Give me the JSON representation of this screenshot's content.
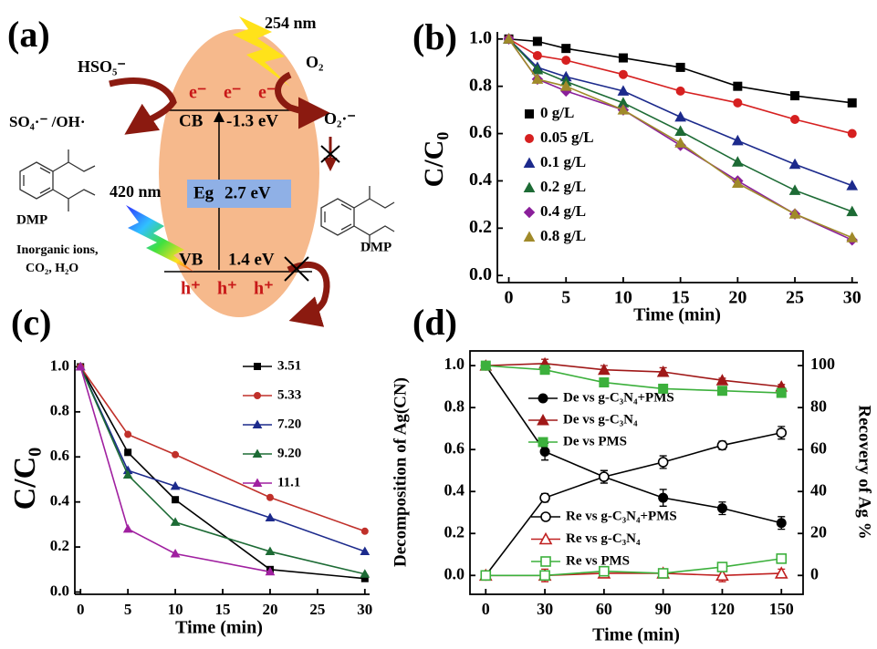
{
  "diagram": {
    "label": "(a)",
    "light_uv": "254 nm",
    "hso5": "HSO₅⁻",
    "o2": "O₂",
    "electrons": [
      "e⁻",
      "e⁻",
      "e⁻"
    ],
    "radicals": "SO₄·⁻ /OH·",
    "cb": "CB",
    "cb_potential": "-1.3 eV",
    "superoxide": "O₂·⁻",
    "eg": "Eg",
    "eg_value": "2.7 eV",
    "light_vis": "420 nm",
    "dmp_left": "DMP",
    "dmp_right": "DMP",
    "products": [
      "Inorganic ions,",
      "CO₂, H₂O"
    ],
    "vb": "VB",
    "vb_potential": "1.4 eV",
    "holes": [
      "h⁺",
      "h⁺",
      "h⁺"
    ]
  },
  "chart_data": [
    {
      "type": "line",
      "panel_label": "(b)",
      "x_label": "Time (min)",
      "y_label": "C/C₀",
      "x": [
        0,
        2.5,
        5,
        10,
        15,
        20,
        25,
        30
      ],
      "xlim": [
        -1,
        30.5
      ],
      "xticks": [
        0,
        5,
        10,
        15,
        20,
        25,
        30
      ],
      "ylim": [
        -0.03,
        1.03
      ],
      "yticks": [
        {
          "value": 0,
          "label": "0.0"
        },
        0.2,
        0.4,
        0.6,
        0.8,
        {
          "value": 1,
          "label": "1.0"
        }
      ],
      "series": [
        {
          "name": "0 g/L",
          "color": "#000000",
          "marker": "square",
          "values": [
            1.0,
            0.99,
            0.96,
            0.92,
            0.88,
            0.8,
            0.76,
            0.73
          ]
        },
        {
          "name": "0.05 g/L",
          "color": "#d62020",
          "marker": "circle",
          "values": [
            1.0,
            0.93,
            0.91,
            0.85,
            0.78,
            0.73,
            0.66,
            0.6
          ]
        },
        {
          "name": "0.1 g/L",
          "color": "#1c2a8c",
          "marker": "triangle",
          "values": [
            1.0,
            0.88,
            0.84,
            0.78,
            0.67,
            0.57,
            0.47,
            0.38
          ]
        },
        {
          "name": "0.2 g/L",
          "color": "#1d6b35",
          "marker": "triangle",
          "values": [
            1.0,
            0.87,
            0.82,
            0.73,
            0.61,
            0.48,
            0.36,
            0.27
          ]
        },
        {
          "name": "0.4 g/L",
          "color": "#8a1f9a",
          "marker": "diamond",
          "values": [
            1.0,
            0.83,
            0.78,
            0.7,
            0.55,
            0.4,
            0.26,
            0.15
          ]
        },
        {
          "name": "0.8 g/L",
          "color": "#a08a2a",
          "marker": "triangle",
          "values": [
            1.0,
            0.83,
            0.8,
            0.7,
            0.56,
            0.39,
            0.26,
            0.16
          ]
        }
      ]
    },
    {
      "type": "line",
      "panel_label": "(c)",
      "x_label": "Time (min)",
      "y_label": "C/C₀",
      "x": [
        0,
        5,
        10,
        20,
        30
      ],
      "xlim": [
        -0.6,
        30.5
      ],
      "xticks": [
        0,
        5,
        10,
        15,
        20,
        25,
        30
      ],
      "ylim": [
        -0.01,
        1.03
      ],
      "yticks": [
        {
          "value": 0,
          "label": "0.0"
        },
        0.2,
        0.4,
        0.6,
        0.8,
        {
          "value": 1,
          "label": "1.0"
        }
      ],
      "series": [
        {
          "name": "3.51",
          "color": "#000000",
          "marker": "square",
          "values": [
            1.0,
            0.62,
            0.41,
            0.1,
            0.06
          ]
        },
        {
          "name": "5.33",
          "color": "#c0302a",
          "marker": "circle",
          "values": [
            1.0,
            0.7,
            0.61,
            0.42,
            0.27
          ]
        },
        {
          "name": "7.20",
          "color": "#1c2a8c",
          "marker": "triangle",
          "values": [
            1.0,
            0.54,
            0.47,
            0.33,
            0.18
          ]
        },
        {
          "name": "9.20",
          "color": "#1d6b35",
          "marker": "triangle",
          "values": [
            1.0,
            0.52,
            0.31,
            0.18,
            0.08
          ]
        },
        {
          "name": "11.1",
          "color": "#a020a0",
          "marker": "triangle",
          "values": [
            1.0,
            0.28,
            0.17,
            0.09,
            null
          ]
        }
      ]
    },
    {
      "type": "line",
      "panel_label": "(d)",
      "x_label": "Time (min)",
      "y_label": "Decomposition of Ag(CN)",
      "y2_label": "Recovery of Ag %",
      "x": [
        0,
        30,
        60,
        90,
        120,
        150
      ],
      "xlim": [
        -8,
        161
      ],
      "xticks": [
        0,
        30,
        60,
        90,
        120,
        150
      ],
      "ylim": [
        -0.09,
        1.07
      ],
      "yticks": [
        {
          "value": 0,
          "label": "0.0"
        },
        0.2,
        0.4,
        0.6,
        0.8,
        {
          "value": 1,
          "label": "1.0"
        }
      ],
      "y2lim": [
        -9,
        107
      ],
      "y2ticks": [
        0,
        20,
        40,
        60,
        80,
        100
      ],
      "series": [
        {
          "name": "De vs g-C₃N₄+PMS",
          "color": "#000000",
          "marker": "circle",
          "open": false,
          "values": [
            1.0,
            0.59,
            0.47,
            0.37,
            0.32,
            0.25
          ],
          "errors": [
            0,
            0.04,
            0.03,
            0.04,
            0.03,
            0.03
          ]
        },
        {
          "name": "De vs g-C₃N₄",
          "color": "#a01818",
          "marker": "triangle",
          "open": false,
          "values": [
            1.0,
            1.01,
            0.98,
            0.97,
            0.93,
            0.9
          ],
          "errors": [
            0.01,
            0.02,
            0.02,
            0.02,
            0.01,
            0.01
          ]
        },
        {
          "name": "De vs PMS",
          "color": "#3cb03c",
          "marker": "square",
          "open": false,
          "values": [
            1.0,
            0.98,
            0.92,
            0.89,
            0.88,
            0.87
          ],
          "errors": [
            0.01,
            0.02,
            0.02,
            0.02,
            0.01,
            0.02
          ]
        },
        {
          "name": "Re vs g-C₃N₄+PMS",
          "color": "#000000",
          "marker": "circle",
          "open": true,
          "axis": "y2",
          "values": [
            0,
            37,
            47,
            54,
            62,
            68
          ],
          "errors": [
            0,
            2,
            3,
            3,
            2,
            3
          ]
        },
        {
          "name": "Re vs g-C₃N₄",
          "color": "#c02020",
          "marker": "triangle",
          "open": true,
          "axis": "y2",
          "values": [
            0,
            0,
            1,
            1,
            0,
            1
          ],
          "errors": [
            0,
            3,
            2,
            2,
            3,
            2
          ]
        },
        {
          "name": "Re vs PMS",
          "color": "#3cb03c",
          "marker": "square",
          "open": true,
          "axis": "y2",
          "values": [
            0,
            0,
            2,
            1,
            4,
            8
          ],
          "errors": [
            0,
            2,
            2,
            2,
            2,
            2
          ]
        }
      ]
    }
  ]
}
